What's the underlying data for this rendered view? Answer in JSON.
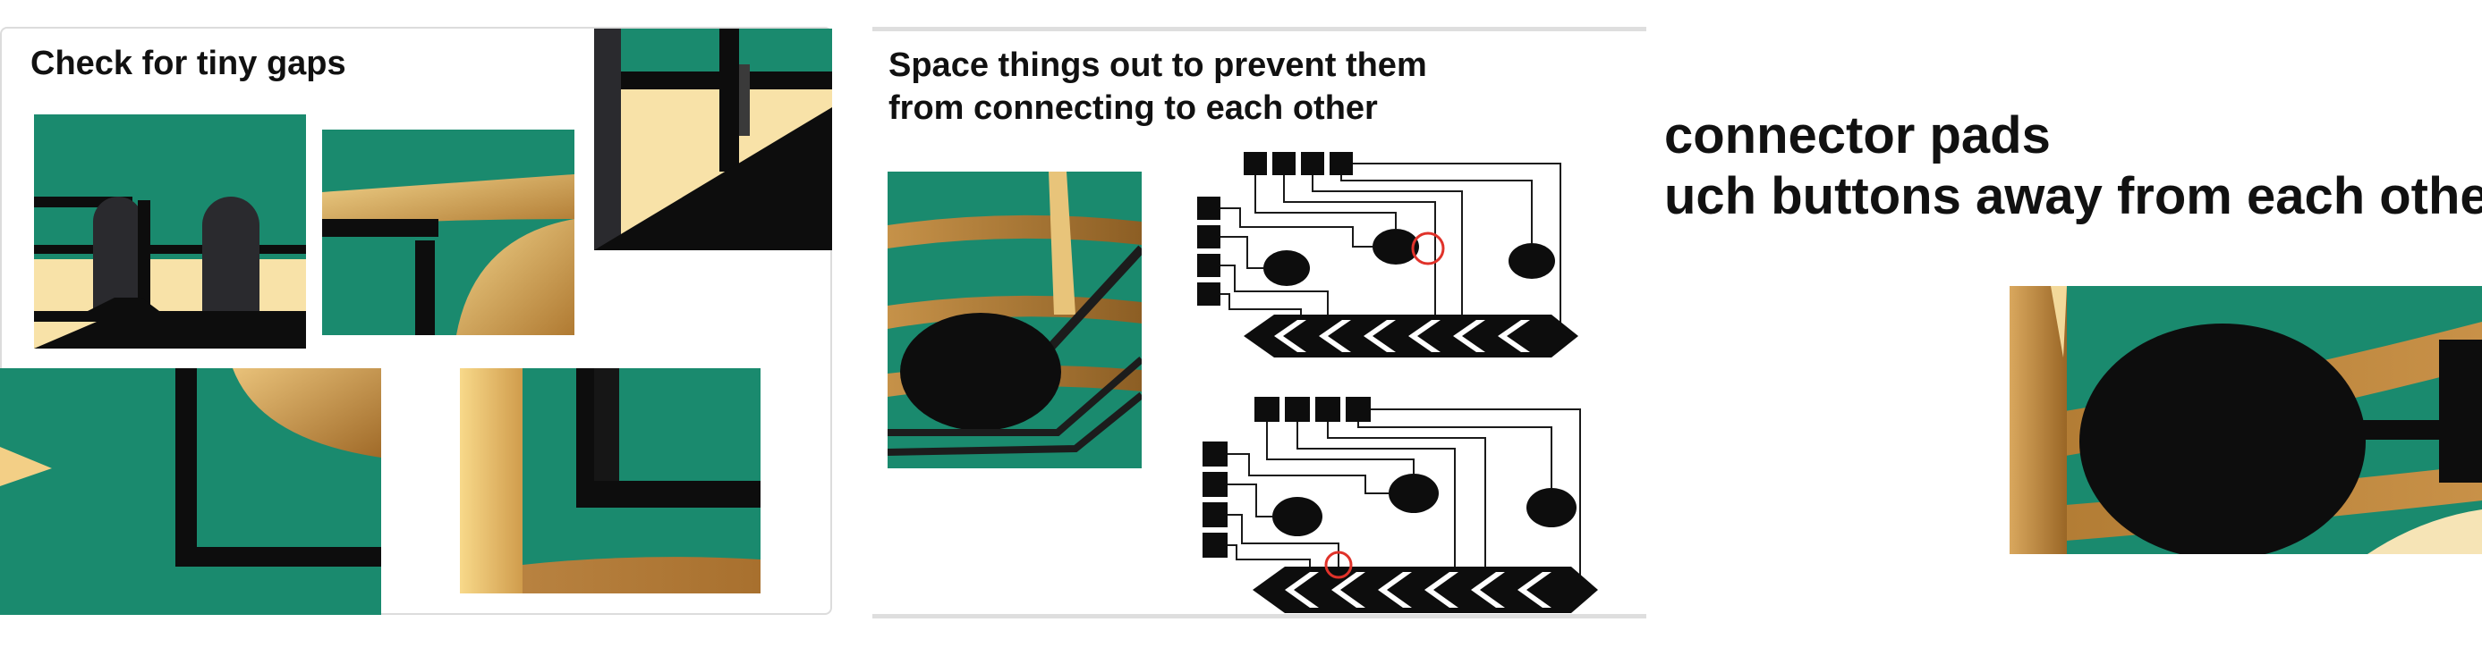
{
  "panels": {
    "gaps": {
      "title": "Check for tiny gaps"
    },
    "spacing": {
      "title_lines": [
        "Space things out to prevent them",
        "from connecting to each other"
      ]
    },
    "pads": {
      "title_lines": [
        "connector pads",
        "uch buttons away from each other"
      ]
    }
  },
  "colors": {
    "board_green": "#1a8a6e",
    "trace_black": "#0d0d0d",
    "copper_gold": "#c9964a",
    "pale_yellow": "#f8e2a8",
    "highlight_red": "#e0322a"
  }
}
